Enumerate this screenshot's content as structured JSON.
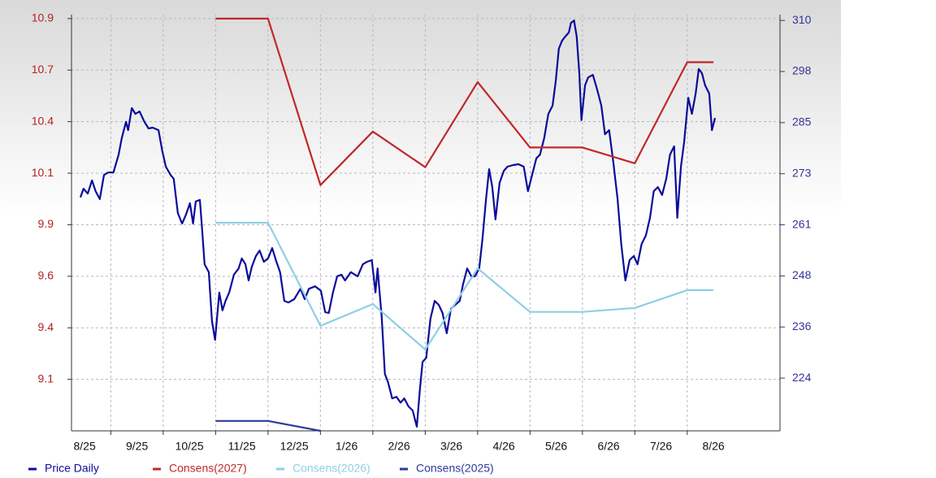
{
  "chart_data": {
    "type": "line",
    "grid": true,
    "legend": "bottom",
    "xlim": [
      0.25,
      13.77
    ],
    "xticks": [
      {
        "value": 0,
        "label": "8/25"
      },
      {
        "value": 1,
        "label": "9/25"
      },
      {
        "value": 2,
        "label": "10/25"
      },
      {
        "value": 3,
        "label": "11/25"
      },
      {
        "value": 4,
        "label": "12/25"
      },
      {
        "value": 5,
        "label": "1/26"
      },
      {
        "value": 6,
        "label": "2/26"
      },
      {
        "value": 7,
        "label": "3/26"
      },
      {
        "value": 8,
        "label": "4/26"
      },
      {
        "value": 9,
        "label": "5/26"
      },
      {
        "value": 10,
        "label": "6/26"
      },
      {
        "value": 11,
        "label": "7/26"
      },
      {
        "value": 12,
        "label": "8/26"
      }
    ],
    "ylim": [
      8.84,
      10.94
    ],
    "yticks": [
      9.1,
      {
        "value": 9.36,
        "label": "9.4"
      },
      {
        "value": 9.62,
        "label": "9.6"
      },
      {
        "value": 9.88,
        "label": "9.9"
      },
      {
        "value": 10.14,
        "label": "10.1"
      },
      10.4,
      {
        "value": 10.66,
        "label": "10.7"
      },
      {
        "value": 10.92,
        "label": "10.9"
      }
    ],
    "y2lim": [
      211.1,
      311.3
    ],
    "y2ticks": [
      {
        "value": 223.8,
        "label": "224"
      },
      {
        "value": 236.1,
        "label": "236"
      },
      {
        "value": 248.4,
        "label": "248"
      },
      {
        "value": 260.7,
        "label": "261"
      },
      273,
      {
        "value": 285.3,
        "label": "285"
      },
      {
        "value": 297.6,
        "label": "298"
      },
      {
        "value": 309.9,
        "label": "310"
      }
    ],
    "series": [
      {
        "name": "Price Daily",
        "color": "#0b0b9c",
        "axis": "y2",
        "x": [
          0.42,
          0.48,
          0.56,
          0.64,
          0.71,
          0.79,
          0.87,
          0.95,
          1.05,
          1.15,
          1.21,
          1.29,
          1.33,
          1.4,
          1.47,
          1.55,
          1.64,
          1.72,
          1.8,
          1.91,
          1.98,
          2.05,
          2.14,
          2.2,
          2.28,
          2.36,
          2.43,
          2.51,
          2.57,
          2.62,
          2.7,
          2.74,
          2.79,
          2.87,
          2.93,
          2.99,
          3.07,
          3.13,
          3.19,
          3.26,
          3.35,
          3.44,
          3.5,
          3.57,
          3.63,
          3.69,
          3.77,
          3.84,
          3.92,
          4.0,
          4.08,
          4.16,
          4.23,
          4.31,
          4.39,
          4.5,
          4.62,
          4.7,
          4.78,
          4.9,
          5.01,
          5.09,
          5.16,
          5.24,
          5.32,
          5.4,
          5.47,
          5.58,
          5.71,
          5.81,
          5.89,
          5.98,
          6.05,
          6.09,
          6.17,
          6.23,
          6.29,
          6.37,
          6.45,
          6.53,
          6.6,
          6.68,
          6.76,
          6.84,
          6.9,
          6.95,
          7.02,
          7.1,
          7.18,
          7.26,
          7.33,
          7.41,
          7.49,
          7.57,
          7.66,
          7.72,
          7.8,
          7.88,
          7.95,
          8.03,
          8.09,
          8.16,
          8.22,
          8.28,
          8.34,
          8.42,
          8.5,
          8.57,
          8.68,
          8.78,
          8.88,
          8.96,
          9.04,
          9.12,
          9.19,
          9.27,
          9.35,
          9.43,
          9.49,
          9.55,
          9.61,
          9.67,
          9.74,
          9.78,
          9.84,
          9.89,
          9.94,
          9.98,
          10.05,
          10.11,
          10.2,
          10.28,
          10.36,
          10.43,
          10.51,
          10.59,
          10.67,
          10.74,
          10.82,
          10.9,
          10.98,
          11.05,
          11.13,
          11.21,
          11.29,
          11.36,
          11.44,
          11.52,
          11.6,
          11.67,
          11.75,
          11.81,
          11.88,
          11.94,
          12.02,
          12.09,
          12.16,
          12.22,
          12.28,
          12.34,
          12.42,
          12.47,
          12.53
        ],
        "values": [
          267.3,
          269.4,
          268.2,
          271.4,
          268.8,
          266.9,
          272.7,
          273.3,
          273.3,
          277.6,
          281.6,
          285.5,
          283.5,
          288.8,
          287.4,
          288.0,
          285.5,
          283.9,
          284.1,
          283.5,
          278.6,
          274.7,
          272.7,
          271.8,
          263.5,
          261.0,
          263.0,
          265.9,
          261.0,
          266.3,
          266.7,
          260.0,
          251.2,
          249.3,
          237.5,
          233.0,
          244.4,
          240.1,
          242.4,
          244.4,
          248.7,
          250.2,
          252.6,
          251.2,
          247.3,
          250.6,
          253.2,
          254.5,
          251.8,
          252.6,
          255.1,
          251.8,
          249.3,
          242.4,
          242.0,
          242.8,
          245.3,
          242.8,
          245.3,
          245.9,
          244.8,
          239.7,
          239.5,
          244.4,
          248.3,
          248.7,
          247.3,
          249.3,
          248.3,
          251.2,
          251.8,
          252.2,
          244.4,
          250.2,
          238.5,
          224.8,
          222.8,
          218.9,
          219.3,
          217.9,
          218.9,
          217.0,
          216.0,
          212.1,
          221.3,
          227.7,
          228.7,
          238.1,
          242.4,
          241.4,
          239.5,
          234.6,
          240.5,
          241.4,
          242.4,
          246.3,
          250.2,
          248.3,
          248.3,
          250.2,
          257.1,
          266.9,
          274.1,
          269.8,
          262.0,
          270.8,
          273.7,
          274.7,
          275.1,
          275.3,
          274.7,
          268.8,
          272.7,
          276.7,
          277.6,
          281.6,
          287.4,
          289.4,
          295.3,
          303.1,
          305.0,
          306.0,
          307.0,
          309.3,
          309.9,
          306.0,
          297.2,
          285.9,
          294.3,
          296.2,
          296.8,
          293.3,
          289.4,
          282.5,
          283.5,
          275.7,
          266.9,
          256.1,
          247.3,
          252.2,
          253.2,
          251.2,
          256.1,
          258.1,
          262.4,
          268.8,
          269.8,
          267.9,
          271.8,
          277.6,
          279.6,
          262.4,
          274.7,
          280.6,
          291.3,
          287.4,
          292.3,
          298.2,
          297.2,
          294.3,
          292.3,
          283.5,
          286.4
        ]
      },
      {
        "name": "Consens(2027)",
        "color": "#c0282a",
        "x": [
          3,
          4,
          5,
          6,
          7,
          8,
          9,
          10,
          11,
          12,
          12.5
        ],
        "values": [
          10.92,
          10.92,
          10.08,
          10.35,
          10.17,
          10.6,
          10.27,
          10.27,
          10.19,
          10.7,
          10.7
        ]
      },
      {
        "name": "Consens(2026)",
        "color": "#8fcfe2",
        "x": [
          3,
          4,
          5,
          6,
          7,
          8,
          9,
          10,
          11,
          12,
          12.5
        ],
        "values": [
          9.89,
          9.89,
          9.37,
          9.48,
          9.25,
          9.66,
          9.44,
          9.44,
          9.46,
          9.55,
          9.55
        ]
      },
      {
        "name": "Consens(2025)",
        "color": "#2b3a9c",
        "x": [
          3,
          4,
          5
        ],
        "values": [
          8.89,
          8.89,
          8.84
        ]
      }
    ]
  }
}
